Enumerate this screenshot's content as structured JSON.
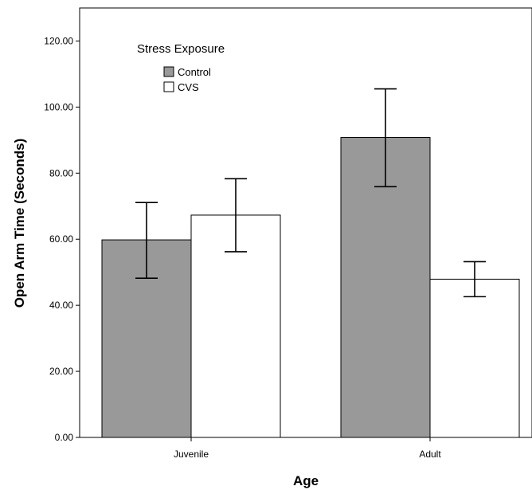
{
  "chart_data": {
    "type": "bar",
    "title": "",
    "xlabel": "Age",
    "ylabel": "Open Arm Time (Seconds)",
    "categories": [
      "Juvenile",
      "Adult"
    ],
    "ylim": [
      0,
      130
    ],
    "yticks": [
      "0.00",
      "20.00",
      "40.00",
      "60.00",
      "80.00",
      "100.00",
      "120.00"
    ],
    "ytick_values": [
      0,
      20,
      40,
      60,
      80,
      100,
      120
    ],
    "grid": false,
    "legend": {
      "title": "Stress Exposure",
      "placement": "top-left"
    },
    "series": [
      {
        "name": "Control",
        "color": "#999999",
        "values": [
          59.8,
          90.8
        ],
        "error_low": [
          48.2,
          75.9
        ],
        "error_high": [
          71.1,
          105.5
        ]
      },
      {
        "name": "CVS",
        "color": "#ffffff",
        "values": [
          67.3,
          47.9
        ],
        "error_low": [
          56.2,
          42.6
        ],
        "error_high": [
          78.3,
          53.2
        ]
      }
    ]
  }
}
